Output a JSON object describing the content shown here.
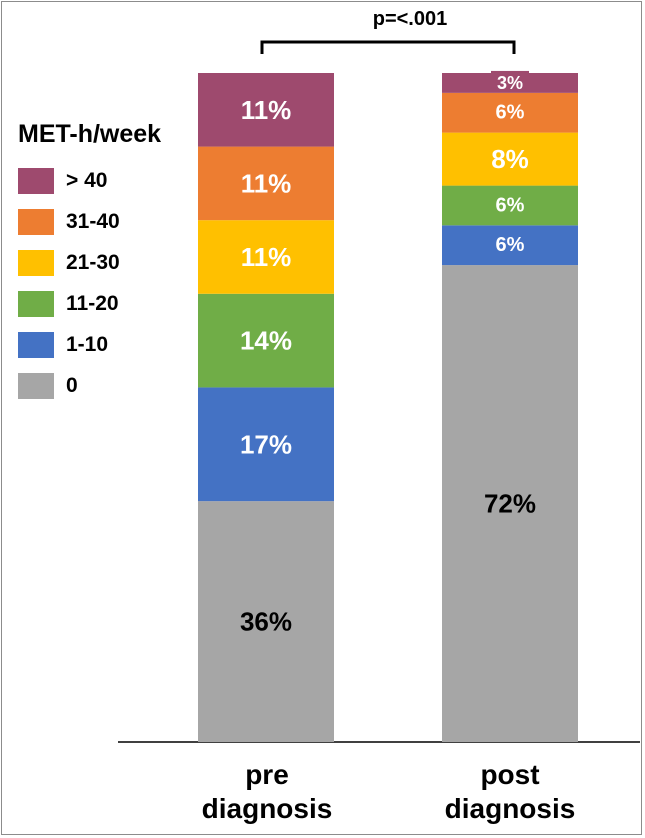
{
  "chart_data": {
    "type": "bar",
    "stacked": true,
    "percent": true,
    "categories": [
      "pre diagnosis",
      "post diagnosis"
    ],
    "category_labels": [
      [
        "pre",
        "diagnosis"
      ],
      [
        "post",
        "diagnosis"
      ]
    ],
    "legend_title": "MET-h/week",
    "legend_placement": "left",
    "annotation": "p=<.001",
    "series": [
      {
        "name": "0",
        "values": [
          36,
          72
        ],
        "labels": [
          "36%",
          "72%"
        ],
        "color": "#a6a6a6",
        "label_color": "#000000"
      },
      {
        "name": "1-10",
        "values": [
          17,
          6
        ],
        "labels": [
          "17%",
          "6%"
        ],
        "color": "#4472c4",
        "label_color": "#ffffff"
      },
      {
        "name": "11-20",
        "values": [
          14,
          6
        ],
        "labels": [
          "14%",
          "6%"
        ],
        "color": "#70ad47",
        "label_color": "#ffffff"
      },
      {
        "name": "21-30",
        "values": [
          11,
          8
        ],
        "labels": [
          "11%",
          "8%"
        ],
        "color": "#ffc000",
        "label_color": "#ffffff"
      },
      {
        "name": "31-40",
        "values": [
          11,
          6
        ],
        "labels": [
          "11%",
          "6%"
        ],
        "color": "#ed7d31",
        "label_color": "#ffffff"
      },
      {
        "name": "> 40",
        "values": [
          11,
          3
        ],
        "labels": [
          "11%",
          "3%"
        ],
        "color": "#9e4a6e",
        "label_color": "#ffffff"
      }
    ],
    "legend_order": [
      "> 40",
      "31-40",
      "21-30",
      "11-20",
      "1-10",
      "0"
    ]
  }
}
